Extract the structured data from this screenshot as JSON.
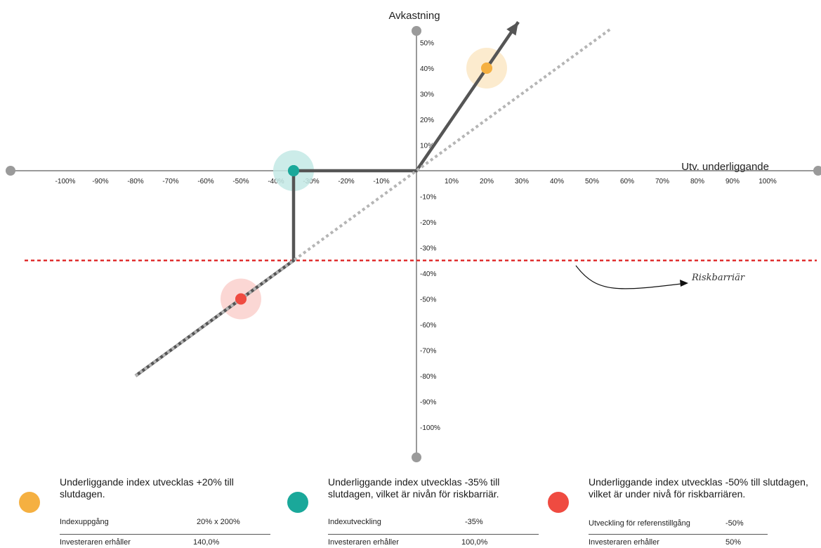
{
  "chart_data": {
    "type": "line",
    "xlabel": "Utv. underliggande",
    "ylabel": "Avkastning",
    "xlim": [
      -100,
      100
    ],
    "ylim": [
      -100,
      50
    ],
    "x_ticks": [
      "-100%",
      "-90%",
      "-80%",
      "-70%",
      "-60%",
      "-50%",
      "-40%",
      "-30%",
      "-20%",
      "-10%",
      "10%",
      "20%",
      "30%",
      "40%",
      "50%",
      "60%",
      "70%",
      "80%",
      "90%",
      "100%"
    ],
    "y_ticks": [
      "50%",
      "40%",
      "30%",
      "20%",
      "10%",
      "-10%",
      "-20%",
      "-30%",
      "-40%",
      "-50%",
      "-60%",
      "-70%",
      "-80%",
      "-90%",
      "-100%"
    ],
    "series": [
      {
        "style": "solid",
        "color": "#555555",
        "x": [
          -80,
          -35,
          -35,
          0,
          29
        ],
        "y": [
          -80,
          -35,
          0,
          0,
          58
        ]
      },
      {
        "style": "dotted",
        "color": "#b5b5b5",
        "x": [
          -80,
          55.5
        ],
        "y": [
          -80,
          55.5
        ]
      }
    ],
    "barrier": {
      "label": "Riskbarriär",
      "y": -35,
      "color": "#e03030"
    },
    "markers": [
      {
        "x": 20,
        "y": 40,
        "color": "#f5b041",
        "halo": "#fbe7c6"
      },
      {
        "x": -35,
        "y": 0,
        "color": "#1aa89a",
        "halo": "#c3e9e5"
      },
      {
        "x": -50,
        "y": -50,
        "color": "#ef4b41",
        "halo": "#fad0cd"
      }
    ]
  },
  "scenarios": [
    {
      "color": "#f5b041",
      "description": "Underliggande index utvecklas +20% till slutdagen.",
      "row1": {
        "label": "Indexuppgång",
        "value": "20% x 200%"
      },
      "row2": {
        "label": "Investeraren erhåller",
        "value": "140,0%"
      }
    },
    {
      "color": "#1aa89a",
      "description": "Underliggande index utvecklas -35% till slutdagen, vilket är nivån för riskbarriär.",
      "row1": {
        "label": "Indexutveckling",
        "value": "-35%"
      },
      "row2": {
        "label": "Investeraren erhåller",
        "value": "100,0%"
      }
    },
    {
      "color": "#ef4b41",
      "description": "Underliggande index utvecklas -50% till slutdagen, vilket är under nivå för riskbarriären.",
      "row1": {
        "label": "Utveckling för referenstillgång",
        "value": "-50%"
      },
      "row2": {
        "label": "Investeraren erhåller",
        "value": "50%"
      }
    }
  ]
}
